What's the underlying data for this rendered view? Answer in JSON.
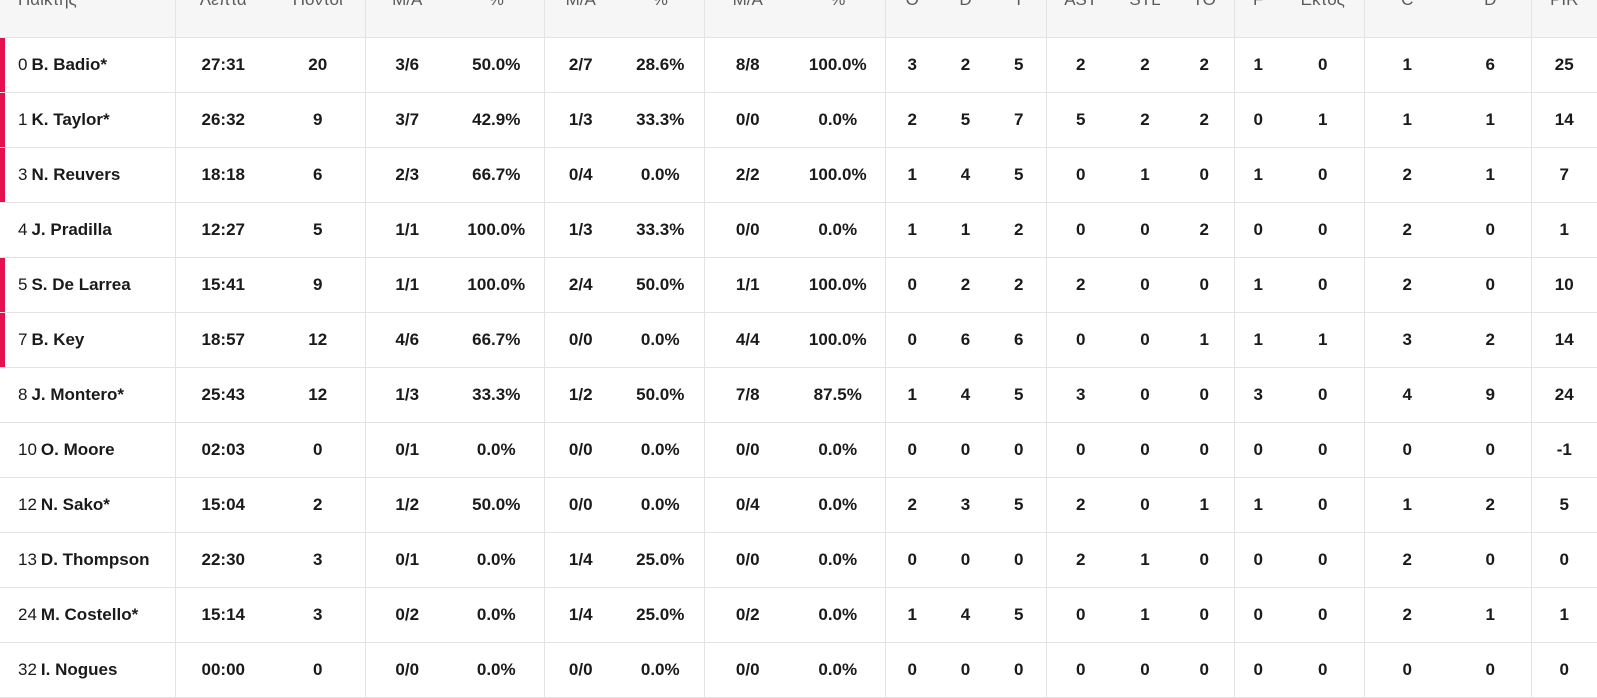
{
  "table": {
    "header": [
      "Παίκτης",
      "Λεπτά",
      "Πόντοι",
      "Μ/Α",
      "%",
      "Μ/Α",
      "%",
      "Μ/Α",
      "%",
      "O",
      "D",
      "T",
      "AST",
      "STL",
      "TO",
      "F",
      "Εκτός",
      "C",
      "D",
      "PIR"
    ],
    "rows": [
      {
        "number": "0",
        "name": "B. Badio*",
        "on_court": true,
        "stats": [
          "27:31",
          "20",
          "3/6",
          "50.0%",
          "2/7",
          "28.6%",
          "8/8",
          "100.0%",
          "3",
          "2",
          "5",
          "2",
          "2",
          "2",
          "1",
          "0",
          "1",
          "6",
          "25"
        ]
      },
      {
        "number": "1",
        "name": "K. Taylor*",
        "on_court": true,
        "stats": [
          "26:32",
          "9",
          "3/7",
          "42.9%",
          "1/3",
          "33.3%",
          "0/0",
          "0.0%",
          "2",
          "5",
          "7",
          "5",
          "2",
          "2",
          "0",
          "1",
          "1",
          "1",
          "14"
        ]
      },
      {
        "number": "3",
        "name": "N. Reuvers",
        "on_court": true,
        "stats": [
          "18:18",
          "6",
          "2/3",
          "66.7%",
          "0/4",
          "0.0%",
          "2/2",
          "100.0%",
          "1",
          "4",
          "5",
          "0",
          "1",
          "0",
          "1",
          "0",
          "2",
          "1",
          "7"
        ]
      },
      {
        "number": "4",
        "name": "J. Pradilla",
        "on_court": false,
        "stats": [
          "12:27",
          "5",
          "1/1",
          "100.0%",
          "1/3",
          "33.3%",
          "0/0",
          "0.0%",
          "1",
          "1",
          "2",
          "0",
          "0",
          "2",
          "0",
          "0",
          "2",
          "0",
          "1"
        ]
      },
      {
        "number": "5",
        "name": "S. De Larrea",
        "on_court": true,
        "stats": [
          "15:41",
          "9",
          "1/1",
          "100.0%",
          "2/4",
          "50.0%",
          "1/1",
          "100.0%",
          "0",
          "2",
          "2",
          "2",
          "0",
          "0",
          "1",
          "0",
          "2",
          "0",
          "10"
        ]
      },
      {
        "number": "7",
        "name": "B. Key",
        "on_court": true,
        "stats": [
          "18:57",
          "12",
          "4/6",
          "66.7%",
          "0/0",
          "0.0%",
          "4/4",
          "100.0%",
          "0",
          "6",
          "6",
          "0",
          "0",
          "1",
          "1",
          "1",
          "3",
          "2",
          "14"
        ]
      },
      {
        "number": "8",
        "name": "J. Montero*",
        "on_court": false,
        "stats": [
          "25:43",
          "12",
          "1/3",
          "33.3%",
          "1/2",
          "50.0%",
          "7/8",
          "87.5%",
          "1",
          "4",
          "5",
          "3",
          "0",
          "0",
          "3",
          "0",
          "4",
          "9",
          "24"
        ]
      },
      {
        "number": "10",
        "name": "O. Moore",
        "on_court": false,
        "stats": [
          "02:03",
          "0",
          "0/1",
          "0.0%",
          "0/0",
          "0.0%",
          "0/0",
          "0.0%",
          "0",
          "0",
          "0",
          "0",
          "0",
          "0",
          "0",
          "0",
          "0",
          "0",
          "-1"
        ]
      },
      {
        "number": "12",
        "name": "N. Sako*",
        "on_court": false,
        "stats": [
          "15:04",
          "2",
          "1/2",
          "50.0%",
          "0/0",
          "0.0%",
          "0/4",
          "0.0%",
          "2",
          "3",
          "5",
          "2",
          "0",
          "1",
          "1",
          "0",
          "1",
          "2",
          "5"
        ]
      },
      {
        "number": "13",
        "name": "D. Thompson",
        "on_court": false,
        "stats": [
          "22:30",
          "3",
          "0/1",
          "0.0%",
          "1/4",
          "25.0%",
          "0/0",
          "0.0%",
          "0",
          "0",
          "0",
          "2",
          "1",
          "0",
          "0",
          "0",
          "2",
          "0",
          "0"
        ]
      },
      {
        "number": "24",
        "name": "M. Costello*",
        "on_court": false,
        "stats": [
          "15:14",
          "3",
          "0/2",
          "0.0%",
          "1/4",
          "25.0%",
          "0/2",
          "0.0%",
          "1",
          "4",
          "5",
          "0",
          "1",
          "0",
          "0",
          "0",
          "2",
          "1",
          "1"
        ]
      },
      {
        "number": "32",
        "name": "I. Nogues",
        "on_court": false,
        "stats": [
          "00:00",
          "0",
          "0/0",
          "0.0%",
          "0/0",
          "0.0%",
          "0/0",
          "0.0%",
          "0",
          "0",
          "0",
          "0",
          "0",
          "0",
          "0",
          "0",
          "0",
          "0",
          "0"
        ]
      }
    ]
  }
}
